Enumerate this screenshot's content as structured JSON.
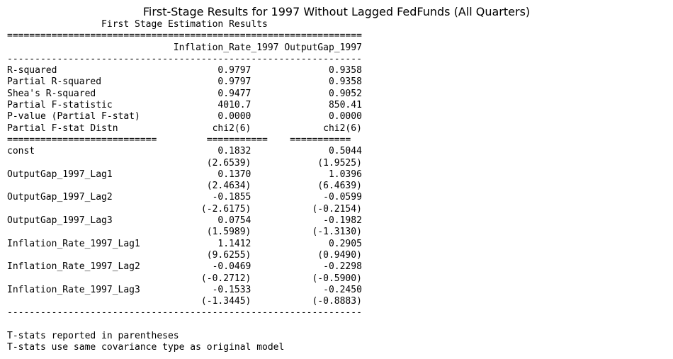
{
  "figure_title": "First-Stage Results for 1997 Without Lagged FedFunds (All Quarters)",
  "report": {
    "header": "First Stage Estimation Results",
    "columns": [
      "Inflation_Rate_1997",
      "OutputGap_1997"
    ],
    "stats": [
      {
        "label": "R-squared",
        "values": [
          "0.9797",
          "0.9358"
        ]
      },
      {
        "label": "Partial R-squared",
        "values": [
          "0.9797",
          "0.9358"
        ]
      },
      {
        "label": "Shea's R-squared",
        "values": [
          "0.9477",
          "0.9052"
        ]
      },
      {
        "label": "Partial F-statistic",
        "values": [
          "4010.7",
          "850.41"
        ]
      },
      {
        "label": "P-value (Partial F-stat)",
        "values": [
          "0.0000",
          "0.0000"
        ]
      },
      {
        "label": "Partial F-stat Distn",
        "values": [
          "chi2(6)",
          "chi2(6)"
        ]
      }
    ],
    "coefficients": [
      {
        "label": "const",
        "values": [
          "0.1832",
          "0.5044"
        ],
        "tstats": [
          "(2.6539)",
          "(1.9525)"
        ]
      },
      {
        "label": "OutputGap_1997_Lag1",
        "values": [
          "0.1370",
          "1.0396"
        ],
        "tstats": [
          "(2.4634)",
          "(6.4639)"
        ]
      },
      {
        "label": "OutputGap_1997_Lag2",
        "values": [
          "-0.1855",
          "-0.0599"
        ],
        "tstats": [
          "(-2.6175)",
          "(-0.2154)"
        ]
      },
      {
        "label": "OutputGap_1997_Lag3",
        "values": [
          "0.0754",
          "-0.1982"
        ],
        "tstats": [
          "(1.5989)",
          "(-1.3130)"
        ]
      },
      {
        "label": "Inflation_Rate_1997_Lag1",
        "values": [
          "1.1412",
          "0.2905"
        ],
        "tstats": [
          "(9.6255)",
          "(0.9490)"
        ]
      },
      {
        "label": "Inflation_Rate_1997_Lag2",
        "values": [
          "-0.0469",
          "-0.2298"
        ],
        "tstats": [
          "(-0.2712)",
          "(-0.5900)"
        ]
      },
      {
        "label": "Inflation_Rate_1997_Lag3",
        "values": [
          "-0.1533",
          "-0.2450"
        ],
        "tstats": [
          "(-1.3445)",
          "(-0.8883)"
        ]
      }
    ],
    "notes": [
      "T-stats reported in parentheses",
      "T-stats use same covariance type as original model"
    ]
  }
}
